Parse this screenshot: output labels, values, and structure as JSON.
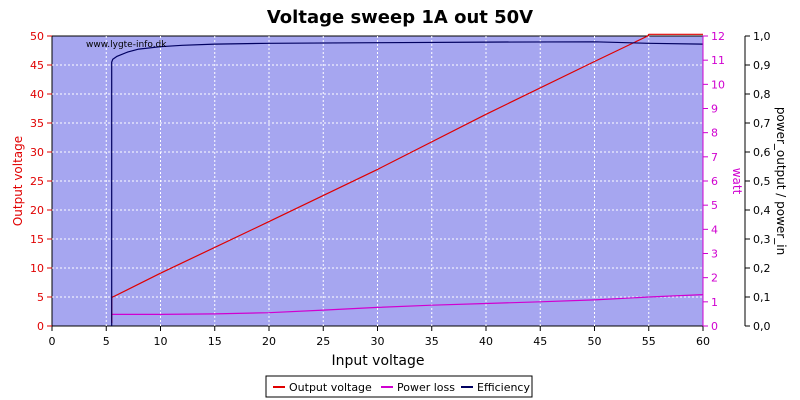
{
  "chart_data": {
    "type": "line",
    "title": "Voltage sweep 1A out 50V",
    "watermark": "www.lygte-info.dk",
    "xlabel": "Input voltage",
    "xlim": [
      0,
      60
    ],
    "xticks": [
      0,
      5,
      10,
      15,
      20,
      25,
      30,
      35,
      40,
      45,
      50,
      55,
      60
    ],
    "grid": true,
    "legend_position": "bottom-center",
    "background_color": "#a6a6f0",
    "axes": {
      "left": {
        "label": "Output voltage",
        "color": "#e00000",
        "ylim": [
          0,
          50
        ],
        "ticks": [
          "0",
          "5",
          "10",
          "15",
          "20",
          "25",
          "30",
          "35",
          "40",
          "45",
          "50"
        ]
      },
      "right1": {
        "label": "watt",
        "color": "#d000d0",
        "ylim": [
          0,
          12
        ],
        "ticks": [
          "0",
          "1",
          "2",
          "3",
          "4",
          "5",
          "6",
          "7",
          "8",
          "9",
          "10",
          "11",
          "12"
        ]
      },
      "right2": {
        "label": "power_output / power_in",
        "color": "#000060",
        "ylim": [
          0,
          1
        ],
        "ticks": [
          "0,0",
          "0,1",
          "0,2",
          "0,3",
          "0,4",
          "0,5",
          "0,6",
          "0,7",
          "0,8",
          "0,9",
          "1,0"
        ]
      }
    },
    "series": [
      {
        "name": "Output voltage",
        "axis": "left",
        "color": "#e00000",
        "x": [
          5.5,
          5.5,
          5.6,
          10,
          20,
          30,
          40,
          50,
          54.9,
          55.0,
          60
        ],
        "y": [
          0.5,
          5.0,
          5.0,
          9.1,
          18.0,
          27.0,
          36.5,
          45.6,
          50.0,
          50.3,
          50.3
        ]
      },
      {
        "name": "Power loss",
        "axis": "right1",
        "color": "#d000d0",
        "x": [
          5.5,
          10,
          15,
          20,
          25,
          30,
          35,
          40,
          45,
          50,
          55,
          60
        ],
        "y": [
          0.48,
          0.48,
          0.5,
          0.55,
          0.66,
          0.77,
          0.86,
          0.93,
          1.0,
          1.08,
          1.2,
          1.3
        ]
      },
      {
        "name": "Efficiency",
        "axis": "right2",
        "color": "#000060",
        "x": [
          5.5,
          5.5,
          5.6,
          6,
          7,
          8,
          10,
          12,
          15,
          20,
          30,
          40,
          50,
          55,
          60
        ],
        "y": [
          0.0,
          0.91,
          0.92,
          0.93,
          0.945,
          0.955,
          0.963,
          0.968,
          0.972,
          0.975,
          0.977,
          0.979,
          0.98,
          0.975,
          0.972
        ]
      }
    ]
  }
}
